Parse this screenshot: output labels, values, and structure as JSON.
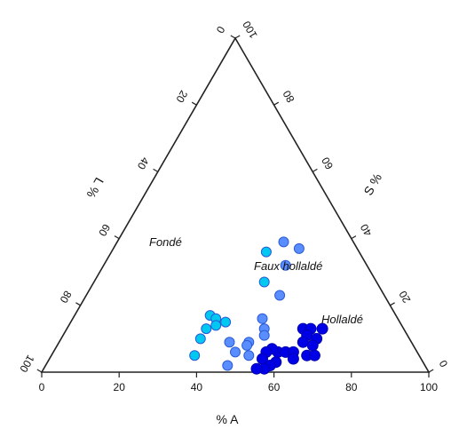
{
  "chart_data": {
    "type": "scatter",
    "variant": "ternary",
    "title": "",
    "axes": {
      "A": {
        "label": "% A",
        "ticks": [
          "0",
          "20",
          "40",
          "60",
          "80",
          "100"
        ]
      },
      "L": {
        "label": "L %",
        "ticks": [
          "0",
          "20",
          "40",
          "60",
          "80",
          "100"
        ]
      },
      "S": {
        "label": "S %",
        "ticks": [
          "0",
          "20",
          "40",
          "60",
          "80",
          "100"
        ]
      }
    },
    "regions": [
      "Fondé",
      "Faux hollaldé",
      "Hollaldé"
    ],
    "series": [
      {
        "color": "#00c8f0",
        "points": [
          {
            "x": 40,
            "y": 36
          },
          {
            "x": 44,
            "y": 27
          },
          {
            "x": 35,
            "y": 17
          },
          {
            "x": 37,
            "y": 16
          },
          {
            "x": 36,
            "y": 13
          },
          {
            "x": 38,
            "y": 14
          },
          {
            "x": 40,
            "y": 15
          },
          {
            "x": 36,
            "y": 10
          },
          {
            "x": 37,
            "y": 5
          }
        ]
      },
      {
        "color": "#5a8dff",
        "points": [
          {
            "x": 43,
            "y": 39
          },
          {
            "x": 48,
            "y": 37
          },
          {
            "x": 47,
            "y": 32
          },
          {
            "x": 50,
            "y": 23
          },
          {
            "x": 49,
            "y": 16
          },
          {
            "x": 51,
            "y": 13
          },
          {
            "x": 52,
            "y": 11
          },
          {
            "x": 49,
            "y": 9
          },
          {
            "x": 44,
            "y": 9
          },
          {
            "x": 49,
            "y": 8
          },
          {
            "x": 47,
            "y": 6
          },
          {
            "x": 51,
            "y": 5
          },
          {
            "x": 47,
            "y": 2
          }
        ]
      },
      {
        "color": "#0000e6",
        "points": [
          {
            "x": 61,
            "y": 13
          },
          {
            "x": 63,
            "y": 13
          },
          {
            "x": 66,
            "y": 13
          },
          {
            "x": 63,
            "y": 11
          },
          {
            "x": 66,
            "y": 10
          },
          {
            "x": 63,
            "y": 9
          },
          {
            "x": 66,
            "y": 8
          },
          {
            "x": 58,
            "y": 6
          },
          {
            "x": 60,
            "y": 6
          },
          {
            "x": 62,
            "y": 6
          },
          {
            "x": 56,
            "y": 7
          },
          {
            "x": 55,
            "y": 6
          },
          {
            "x": 66,
            "y": 5
          },
          {
            "x": 68,
            "y": 5
          },
          {
            "x": 55,
            "y": 4
          },
          {
            "x": 59,
            "y": 3
          },
          {
            "x": 63,
            "y": 4
          },
          {
            "x": 58,
            "y": 2
          },
          {
            "x": 57,
            "y": 1
          },
          {
            "x": 55,
            "y": 1
          }
        ]
      }
    ]
  }
}
